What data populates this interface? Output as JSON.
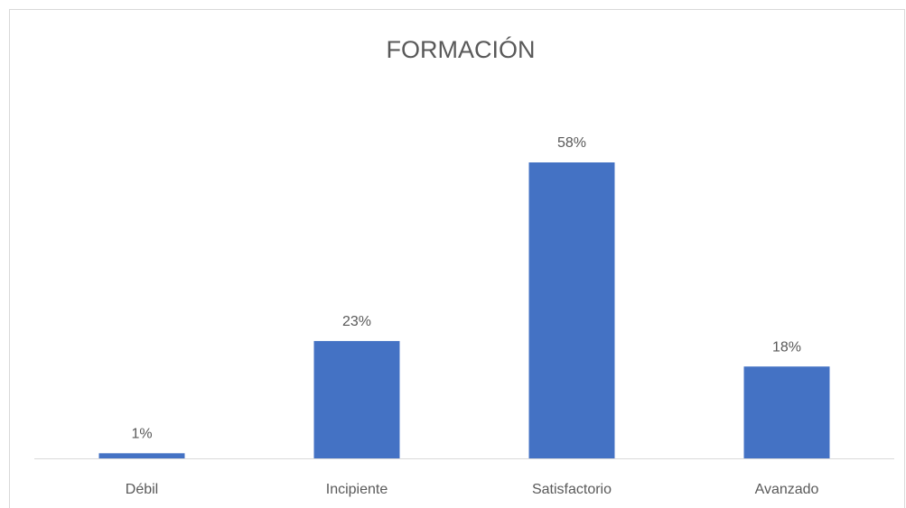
{
  "chart_data": {
    "type": "bar",
    "title": "FORMACIÓN",
    "categories": [
      "Débil",
      "Incipiente",
      "Satisfactorio",
      "Avanzado"
    ],
    "values": [
      1,
      23,
      58,
      18
    ],
    "value_labels": [
      "1%",
      "23%",
      "58%",
      "18%"
    ],
    "color": "#4472c4",
    "grid": false
  }
}
